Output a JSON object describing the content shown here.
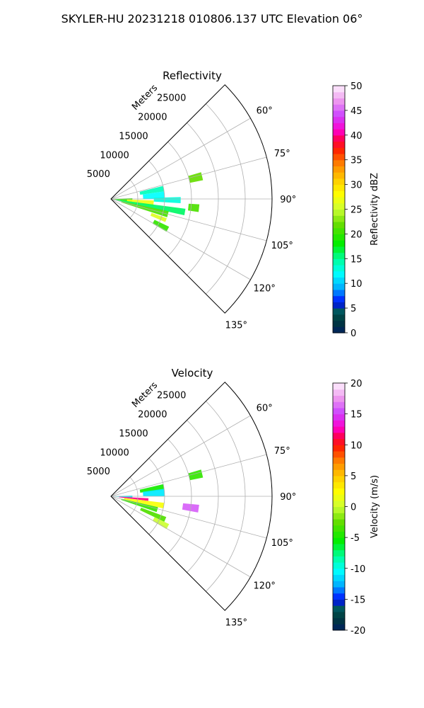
{
  "figure": {
    "suptitle": "SKYLER-HU  20231218  010806.137 UTC Elevation 06°"
  },
  "chart_data": [
    {
      "type": "heatmap",
      "projection": "polar-sector",
      "title": "Reflectivity",
      "radial_label": "Meters",
      "radial_ticks": [
        5000,
        10000,
        15000,
        20000,
        25000
      ],
      "radial_tick_labels": [
        "5000",
        "10000",
        "15000",
        "20000",
        "25000"
      ],
      "theta_ticks": [
        60,
        75,
        90,
        105,
        120,
        135
      ],
      "theta_tick_labels": [
        "60°",
        "75°",
        "90°",
        "105°",
        "120°",
        "135°"
      ],
      "theta_range": [
        45,
        135
      ],
      "rmax": 30000,
      "grid": true,
      "colorbar": {
        "label": "Reflectivity dBZ",
        "min": 0,
        "max": 50,
        "ticks": [
          0,
          5,
          10,
          15,
          20,
          25,
          30,
          35,
          40,
          45,
          50
        ],
        "tick_labels": [
          "0",
          "5",
          "10",
          "15",
          "20",
          "25",
          "30",
          "35",
          "40",
          "45",
          "50"
        ]
      },
      "echoes": [
        {
          "az": 93,
          "az_width": 10,
          "r_start": 500,
          "r_end": 4000,
          "value": 20
        },
        {
          "az": 96,
          "az_width": 8,
          "r_start": 3000,
          "r_end": 8000,
          "value": 27
        },
        {
          "az": 100,
          "az_width": 5,
          "r_start": 1000,
          "r_end": 14000,
          "value": 16
        },
        {
          "az": 105,
          "az_width": 6,
          "r_start": 2000,
          "r_end": 11000,
          "value": 21
        },
        {
          "az": 111,
          "az_width": 4,
          "r_start": 8000,
          "r_end": 11000,
          "value": 26
        },
        {
          "az": 118,
          "az_width": 5,
          "r_start": 9000,
          "r_end": 12000,
          "value": 20
        },
        {
          "az": 79,
          "az_width": 6,
          "r_start": 5500,
          "r_end": 10000,
          "value": 14
        },
        {
          "az": 86,
          "az_width": 8,
          "r_start": 6000,
          "r_end": 10000,
          "value": 12
        },
        {
          "az": 91,
          "az_width": 5,
          "r_start": 8000,
          "r_end": 13000,
          "value": 13
        },
        {
          "az": 96,
          "az_width": 5,
          "r_start": 14500,
          "r_end": 16500,
          "value": 21
        },
        {
          "az": 76,
          "az_width": 5,
          "r_start": 15000,
          "r_end": 17500,
          "value": 22
        }
      ]
    },
    {
      "type": "heatmap",
      "projection": "polar-sector",
      "title": "Velocity",
      "radial_label": "Meters",
      "radial_ticks": [
        5000,
        10000,
        15000,
        20000,
        25000
      ],
      "radial_tick_labels": [
        "5000",
        "10000",
        "15000",
        "20000",
        "25000"
      ],
      "theta_ticks": [
        60,
        75,
        90,
        105,
        120,
        135
      ],
      "theta_tick_labels": [
        "60°",
        "75°",
        "90°",
        "105°",
        "120°",
        "135°"
      ],
      "theta_range": [
        45,
        135
      ],
      "rmax": 30000,
      "grid": true,
      "colorbar": {
        "label": "Velocity (m/s)",
        "min": -20,
        "max": 20,
        "ticks": [
          -20,
          -15,
          -10,
          -5,
          0,
          5,
          10,
          15,
          20
        ],
        "tick_labels": [
          "-20",
          "-15",
          "-10",
          "-5",
          "0",
          "5",
          "10",
          "15",
          "20"
        ]
      },
      "echoes": [
        {
          "az": 91,
          "az_width": 6,
          "r_start": 500,
          "r_end": 4000,
          "value": -11
        },
        {
          "az": 95,
          "az_width": 4,
          "r_start": 1500,
          "r_end": 7000,
          "value": 12
        },
        {
          "az": 100,
          "az_width": 6,
          "r_start": 2500,
          "r_end": 10000,
          "value": 2
        },
        {
          "az": 106,
          "az_width": 6,
          "r_start": 2000,
          "r_end": 9000,
          "value": -4
        },
        {
          "az": 113,
          "az_width": 5,
          "r_start": 6000,
          "r_end": 11000,
          "value": -3
        },
        {
          "az": 118,
          "az_width": 5,
          "r_start": 9000,
          "r_end": 12000,
          "value": 0
        },
        {
          "az": 80,
          "az_width": 6,
          "r_start": 5500,
          "r_end": 10000,
          "value": -5
        },
        {
          "az": 86,
          "az_width": 8,
          "r_start": 6000,
          "r_end": 10000,
          "value": -11
        },
        {
          "az": 98,
          "az_width": 5,
          "r_start": 13500,
          "r_end": 16500,
          "value": 16
        },
        {
          "az": 76,
          "az_width": 5,
          "r_start": 15000,
          "r_end": 17500,
          "value": -4
        }
      ]
    }
  ]
}
